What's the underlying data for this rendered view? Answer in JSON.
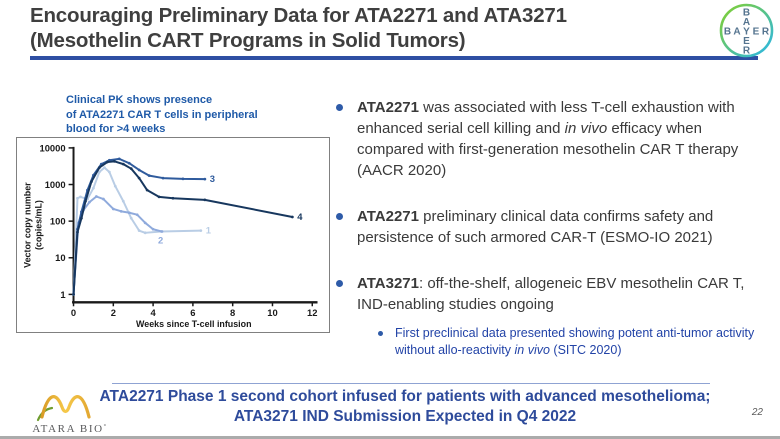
{
  "slide": {
    "title": "Encouraging Preliminary Data for ATA2271 and ATA3271\n(Mesothelin CART Programs in Solid Tumors)",
    "page_number": "22",
    "colors": {
      "title_text": "#3f3f3f",
      "title_underline": "#2e4fa3",
      "caption_blue": "#1f5aa8",
      "bullet_dot_blue": "#2e5ba8",
      "sub_bullet_blue": "#2243a7",
      "banner_blue": "#2e4b9b"
    }
  },
  "logos": {
    "bayer": {
      "word": "BAYER",
      "green": "#84d02c",
      "blue": "#2ab6e9",
      "letter_color": "#55748f"
    },
    "atara": {
      "name": "ATARA BIO",
      "mark": "°",
      "gold": "#e8aa3a",
      "leaf_green": "#6f9d2f"
    }
  },
  "chart_caption": "Clinical PK shows presence\nof ATA2271 CAR T cells in peripheral\nblood for >4 weeks",
  "bullets": [
    {
      "level": 1,
      "segments": [
        {
          "t": "ATA2271",
          "b": true
        },
        {
          "t": " was associated with less T-cell exhaustion with enhanced serial cell killing and "
        },
        {
          "t": "in vivo",
          "i": true
        },
        {
          "t": " efficacy when compared with first-generation mesothelin CAR T therapy (AACR 2020)"
        }
      ]
    },
    {
      "level": 1,
      "segments": [
        {
          "t": "ATA2271",
          "b": true
        },
        {
          "t": " preliminary clinical data confirms safety and persistence of such armored CAR-T (ESMO-IO 2021)"
        }
      ]
    },
    {
      "level": 1,
      "segments": [
        {
          "t": "ATA3271",
          "b": true
        },
        {
          "t": ": off-the-shelf, allogeneic EBV mesothelin CAR T, IND-enabling studies ongoing"
        }
      ]
    },
    {
      "level": 2,
      "segments": [
        {
          "t": "First preclinical data presented showing potent anti-tumor activity without allo-reactivity "
        },
        {
          "t": "in vivo",
          "i": true
        },
        {
          "t": " (SITC 2020)"
        }
      ]
    }
  ],
  "banner": {
    "line1": "ATA2271 Phase 1 second cohort infused for patients with advanced mesothelioma;",
    "line2": "ATA3271 IND Submission Expected in Q4 2022"
  },
  "chart_data": {
    "type": "line",
    "title": "",
    "xlabel": "Weeks since T-cell infusion",
    "ylabel": "Vector copy number (copies/mL)",
    "ylabel_lines": [
      "Vector copy number",
      "(copies/mL)"
    ],
    "y_scale": "log",
    "xlim": [
      0,
      12.3
    ],
    "ylim": [
      1,
      10000
    ],
    "x_ticks": [
      0,
      2,
      4,
      6,
      8,
      10,
      12
    ],
    "y_ticks": [
      1,
      10,
      100,
      1000,
      10000
    ],
    "grid": false,
    "legend": "end-of-line patient numbers",
    "series": [
      {
        "name": "Patient 1",
        "label": "1",
        "color": "#b9cde5",
        "x": [
          0,
          0.2,
          0.35,
          0.7,
          1.0,
          1.3,
          1.55,
          1.8,
          2.1,
          2.5,
          2.9,
          3.3,
          3.6,
          4.4,
          6.4
        ],
        "y": [
          1,
          420,
          460,
          400,
          800,
          2200,
          2900,
          2200,
          900,
          350,
          120,
          55,
          48,
          52,
          55
        ],
        "label_dx": 5,
        "label_dy": 3
      },
      {
        "name": "Patient 2",
        "label": "2",
        "color": "#8faadc",
        "x": [
          0,
          0.25,
          0.5,
          0.8,
          1.15,
          1.5,
          2.0,
          2.4,
          2.8,
          3.2,
          3.6,
          4.0,
          4.45
        ],
        "y": [
          1,
          90,
          200,
          330,
          470,
          400,
          215,
          185,
          170,
          150,
          90,
          60,
          52
        ],
        "label_dx": -4,
        "label_dy": 12
      },
      {
        "name": "Patient 3",
        "label": "3",
        "color": "#2f5b9d",
        "x": [
          0,
          0.2,
          0.4,
          0.7,
          1.0,
          1.4,
          1.8,
          2.3,
          2.8,
          3.3,
          3.8,
          4.5,
          5.5,
          6.6
        ],
        "y": [
          1,
          60,
          180,
          700,
          1800,
          3600,
          4600,
          5000,
          3800,
          2500,
          1750,
          1500,
          1430,
          1400
        ],
        "label_dx": 5,
        "label_dy": 3
      },
      {
        "name": "Patient 4",
        "label": "4",
        "color": "#17375e",
        "x": [
          0,
          0.2,
          0.4,
          0.6,
          0.9,
          1.3,
          1.7,
          2.05,
          2.5,
          2.9,
          3.3,
          3.7,
          4.3,
          5.0,
          6.6,
          11.0
        ],
        "y": [
          1,
          50,
          120,
          350,
          1200,
          2900,
          4100,
          4300,
          3600,
          2700,
          1500,
          700,
          460,
          420,
          380,
          130
        ],
        "label_dx": 5,
        "label_dy": 3
      }
    ]
  }
}
